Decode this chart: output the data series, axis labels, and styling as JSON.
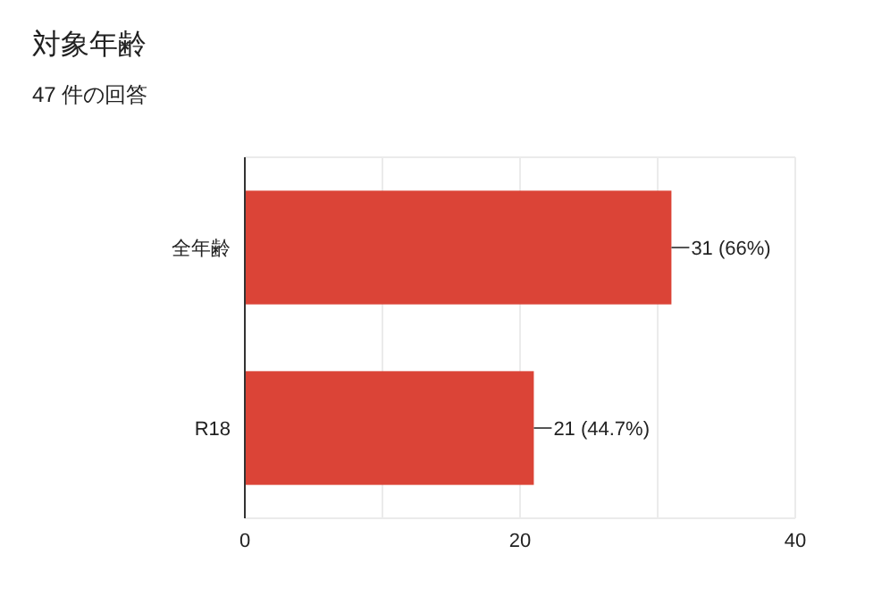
{
  "chart_data": {
    "type": "bar",
    "orientation": "horizontal",
    "title": "対象年齢",
    "subtitle": "47 件の回答",
    "categories": [
      "全年齢",
      "R18"
    ],
    "series": [
      {
        "color": "#db4437",
        "values": [
          31,
          21
        ],
        "value_labels": [
          "31 (66%)",
          "21 (44.7%)"
        ]
      }
    ],
    "xlim": [
      0,
      40
    ],
    "xticks": [
      0,
      {
        "value": 10,
        "label": null
      },
      20,
      {
        "value": 30,
        "label": null
      },
      40
    ],
    "grid": "x"
  }
}
